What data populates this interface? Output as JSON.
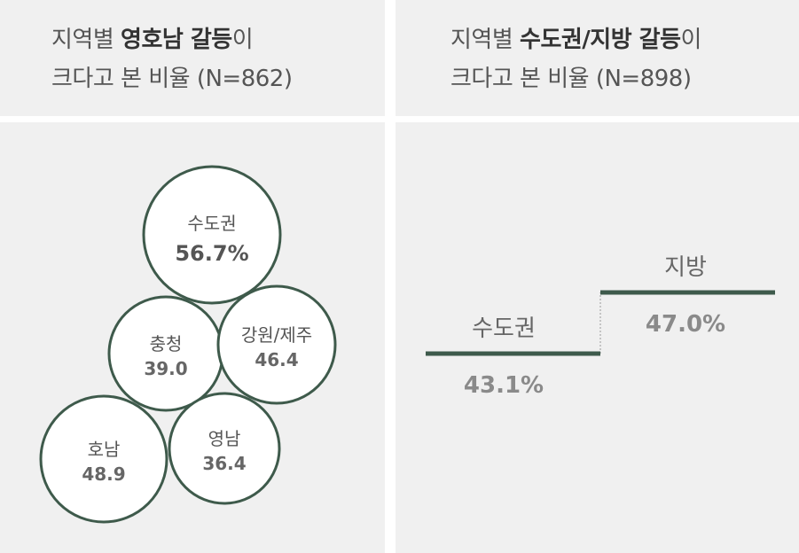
{
  "left_title": {
    "line1_pre": "지역별 ",
    "line1_bold": "영호남 갈등",
    "line1_post": "이",
    "line2": "크다고 본 비율 (N=862)"
  },
  "right_title": {
    "line1_pre": "지역별 ",
    "line1_bold": "수도권/지방 갈등",
    "line1_post": "이",
    "line2": "크다고 본 비율 (N=898)"
  },
  "colors": {
    "accent": "#3e5a4b",
    "panel": "#f0f0f0",
    "circle_fill": "#ffffff"
  },
  "chart_data": [
    {
      "type": "bubble",
      "title": "지역별 영호남 갈등이 크다고 본 비율 (N=862)",
      "categories": [
        "수도권",
        "충청",
        "강원/제주",
        "호남",
        "영남"
      ],
      "values": [
        56.7,
        39.0,
        46.4,
        48.9,
        36.4
      ],
      "labels": [
        "56.7%",
        "39.0",
        "46.4",
        "48.9",
        "36.4"
      ]
    },
    {
      "type": "step",
      "title": "지역별 수도권/지방 갈등이 크다고 본 비율 (N=898)",
      "categories": [
        "수도권",
        "지방"
      ],
      "values": [
        43.1,
        47.0
      ],
      "labels": [
        "43.1%",
        "47.0%"
      ]
    }
  ]
}
